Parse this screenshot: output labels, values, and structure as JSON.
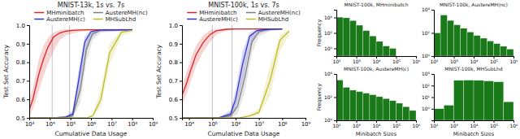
{
  "chart_data": [
    {
      "type": "line",
      "title": "MNIST-13k, 1s vs. 7s",
      "xlabel": "Cumulative Data Usage",
      "ylabel": "Test Set Accuracy",
      "log": "x",
      "legend": "top",
      "xlim": [
        1000,
        1000000000
      ],
      "xticks": [
        {
          "value": 1000,
          "label": "10³"
        },
        {
          "value": 10000,
          "label": "10⁴"
        },
        {
          "value": 100000,
          "label": "10⁵"
        },
        {
          "value": 1000000,
          "label": "10⁶"
        },
        {
          "value": 10000000,
          "label": "10⁷"
        },
        {
          "value": 100000000,
          "label": "10⁸"
        },
        {
          "value": 1000000000,
          "label": "10⁹"
        }
      ],
      "ylim": [
        0.5,
        1.0
      ],
      "yticks": [
        0.5,
        0.6,
        0.7,
        0.8,
        0.9,
        {
          "value": 1.0,
          "label": "1.0"
        }
      ],
      "vlines": {
        "values": [
          13000,
          91000
        ],
        "color": "#b0b0cc"
      },
      "series": [
        {
          "name": "MHminibatch",
          "color": "#d62728",
          "x": [
            1000,
            1500,
            2000,
            3000,
            5000,
            8000,
            15000,
            30000,
            60000,
            130000,
            300000,
            1000000,
            100000000
          ],
          "values": [
            0.545,
            0.6,
            0.66,
            0.74,
            0.82,
            0.88,
            0.935,
            0.958,
            0.968,
            0.972,
            0.974,
            0.975,
            0.975
          ],
          "lower": [
            0.505,
            0.55,
            0.59,
            0.65,
            0.73,
            0.79,
            0.86,
            0.92,
            0.945,
            0.955,
            0.965,
            0.972,
            0.972
          ],
          "upper": [
            0.6,
            0.66,
            0.73,
            0.82,
            0.89,
            0.93,
            0.96,
            0.975,
            0.978,
            0.979,
            0.98,
            0.98,
            0.98
          ]
        },
        {
          "name": "AustereMH(nc)",
          "color": "#7f7f7f",
          "x": [
            1000,
            5000,
            20000,
            60000,
            130000,
            300000,
            600000,
            1200000,
            3000000,
            100000000
          ],
          "values": [
            0.5,
            0.5,
            0.501,
            0.502,
            0.51,
            0.65,
            0.87,
            0.955,
            0.972,
            0.975
          ],
          "lower": [
            0.5,
            0.5,
            0.5,
            0.5,
            0.502,
            0.58,
            0.8,
            0.92,
            0.96,
            0.972
          ],
          "upper": [
            0.5,
            0.5,
            0.503,
            0.506,
            0.53,
            0.72,
            0.92,
            0.972,
            0.978,
            0.979
          ]
        },
        {
          "name": "AustereMH(c)",
          "color": "#3333cc",
          "x": [
            1000,
            5000,
            20000,
            60000,
            130000,
            250000,
            500000,
            1000000,
            2500000,
            100000000
          ],
          "values": [
            0.5,
            0.5,
            0.501,
            0.505,
            0.52,
            0.7,
            0.91,
            0.965,
            0.974,
            0.975
          ],
          "lower": [
            0.5,
            0.5,
            0.5,
            0.502,
            0.51,
            0.62,
            0.84,
            0.935,
            0.965,
            0.972
          ],
          "upper": [
            0.5,
            0.5,
            0.503,
            0.51,
            0.54,
            0.76,
            0.94,
            0.975,
            0.978,
            0.979
          ]
        },
        {
          "name": "MHSubLhd",
          "color": "#bcbd22",
          "x": [
            1000,
            30000,
            130000,
            300000,
            600000,
            1200000,
            3000000,
            8000000,
            30000000,
            100000000
          ],
          "values": [
            0.5,
            0.5,
            0.5,
            0.5,
            0.5,
            0.51,
            0.6,
            0.85,
            0.962,
            0.972
          ],
          "lower": [
            0.5,
            0.5,
            0.5,
            0.5,
            0.5,
            0.505,
            0.56,
            0.79,
            0.94,
            0.965
          ],
          "upper": [
            0.5,
            0.5,
            0.5,
            0.5,
            0.5,
            0.52,
            0.65,
            0.9,
            0.972,
            0.978
          ]
        }
      ]
    },
    {
      "type": "line",
      "title": "MNIST-100k, 1s vs. 7s",
      "xlabel": "Cumulative Data Usage",
      "ylabel": "Test Set Accuracy",
      "log": "x",
      "legend": "top",
      "xlim": [
        5000,
        1000000000
      ],
      "xticks": [
        {
          "value": 10000,
          "label": "10⁴"
        },
        {
          "value": 100000,
          "label": "10⁵"
        },
        {
          "value": 1000000,
          "label": "10⁶"
        },
        {
          "value": 10000000,
          "label": "10⁷"
        },
        {
          "value": 100000000,
          "label": "10⁸"
        },
        {
          "value": 1000000000,
          "label": "10⁹"
        }
      ],
      "ylim": [
        0.5,
        1.0
      ],
      "yticks": [
        0.5,
        0.6,
        0.7,
        0.8,
        0.9,
        {
          "value": 1.0,
          "label": "1.0"
        }
      ],
      "vlines": {
        "values": [
          100000,
          700000
        ],
        "color": "#b0b0cc"
      },
      "series": [
        {
          "name": "MHminibatch",
          "color": "#d62728",
          "x": [
            5000,
            8000,
            12000,
            20000,
            40000,
            80000,
            150000,
            400000,
            1000000,
            100000000
          ],
          "values": [
            0.62,
            0.69,
            0.76,
            0.84,
            0.905,
            0.95,
            0.97,
            0.978,
            0.98,
            0.98
          ],
          "lower": [
            0.57,
            0.63,
            0.7,
            0.78,
            0.855,
            0.91,
            0.95,
            0.97,
            0.976,
            0.977
          ],
          "upper": [
            0.67,
            0.75,
            0.82,
            0.89,
            0.945,
            0.974,
            0.978,
            0.982,
            0.983,
            0.983
          ]
        },
        {
          "name": "AustereMH(nc)",
          "color": "#7f7f7f",
          "x": [
            5000,
            50000,
            200000,
            600000,
            1200000,
            2500000,
            5000000,
            10000000,
            30000000,
            100000000
          ],
          "values": [
            0.5,
            0.5,
            0.502,
            0.51,
            0.56,
            0.72,
            0.91,
            0.965,
            0.976,
            0.98
          ],
          "lower": [
            0.5,
            0.5,
            0.5,
            0.502,
            0.52,
            0.64,
            0.85,
            0.94,
            0.968,
            0.976
          ],
          "upper": [
            0.5,
            0.5,
            0.504,
            0.525,
            0.61,
            0.8,
            0.945,
            0.975,
            0.981,
            0.983
          ]
        },
        {
          "name": "AustereMH(c)",
          "color": "#3333cc",
          "x": [
            5000,
            50000,
            200000,
            600000,
            1000000,
            2000000,
            4000000,
            8000000,
            20000000,
            100000000
          ],
          "values": [
            0.5,
            0.5,
            0.502,
            0.52,
            0.6,
            0.79,
            0.94,
            0.97,
            0.978,
            0.98
          ],
          "lower": [
            0.5,
            0.5,
            0.5,
            0.505,
            0.545,
            0.7,
            0.88,
            0.95,
            0.972,
            0.977
          ],
          "upper": [
            0.5,
            0.5,
            0.504,
            0.54,
            0.65,
            0.86,
            0.96,
            0.978,
            0.982,
            0.983
          ]
        },
        {
          "name": "MHSubLhd",
          "color": "#bcbd22",
          "x": [
            5000,
            200000,
            700000,
            1500000,
            4000000,
            10000000,
            30000000,
            80000000,
            200000000
          ],
          "values": [
            0.5,
            0.5,
            0.5,
            0.5,
            0.51,
            0.53,
            0.7,
            0.92,
            0.968
          ],
          "lower": [
            0.5,
            0.5,
            0.5,
            0.5,
            0.504,
            0.515,
            0.62,
            0.86,
            0.95
          ],
          "upper": [
            0.5,
            0.5,
            0.5,
            0.5,
            0.52,
            0.55,
            0.78,
            0.95,
            0.974
          ]
        }
      ]
    },
    {
      "type": "histogram",
      "title": "MNIST-100k, MHminibatch",
      "ylabel": "Frequency",
      "log": true,
      "color": "#1a7a1a",
      "bins": [
        100,
        213.79620895,
        467.73514129,
        1000,
        2137.9620895,
        4677.3514129,
        10000,
        21379.620895,
        46773.514129,
        100000
      ],
      "values": [
        11000,
        9000,
        4000,
        1000,
        200,
        40,
        8,
        2,
        1
      ],
      "xlim": [
        100,
        1000000
      ],
      "xticks": [
        {
          "value": 100,
          "label": "10²"
        },
        {
          "value": 1000,
          "label": "10³"
        },
        {
          "value": 10000,
          "label": "10⁴"
        },
        {
          "value": 100000,
          "label": "10⁵"
        },
        {
          "value": 1000000,
          "label": "10⁶"
        }
      ],
      "ylim": [
        0.1,
        100000
      ],
      "yticks": [
        {
          "value": 1,
          "label": "10⁰"
        },
        {
          "value": 100,
          "label": "10²"
        },
        {
          "value": 10000,
          "label": "10⁴"
        }
      ]
    },
    {
      "type": "histogram",
      "title": "MNIST-100k, AustereMH(nc)",
      "log": true,
      "color": "#1a7a1a",
      "bins": [
        100,
        213.79620895,
        467.73514129,
        1000,
        2137.9620895,
        4677.3514129,
        10000,
        21379.620895,
        46773.514129,
        100000,
        213796.20895,
        467735.14129,
        1000000
      ],
      "values": [
        100,
        3500,
        1200,
        500,
        250,
        120,
        60,
        35,
        20,
        12,
        7,
        4
      ],
      "xlim": [
        100,
        1000000
      ],
      "xticks": [
        {
          "value": 100,
          "label": "10²"
        },
        {
          "value": 1000,
          "label": "10³"
        },
        {
          "value": 10000,
          "label": "10⁴"
        },
        {
          "value": 100000,
          "label": "10⁵"
        },
        {
          "value": 1000000,
          "label": "10⁶"
        }
      ],
      "ylim": [
        1,
        10000
      ],
      "yticks": [
        {
          "value": 1,
          "label": "10⁰"
        },
        {
          "value": 100,
          "label": "10²"
        },
        {
          "value": 10000,
          "label": "10⁴"
        }
      ]
    },
    {
      "type": "histogram",
      "title": "MNIST-100k, AustereMH(c)",
      "xlabel": "Minibatch Sizes",
      "ylabel": "Frequency",
      "log": true,
      "color": "#1a7a1a",
      "bins": [
        100,
        213.79620895,
        467.73514129,
        1000,
        2137.9620895,
        4677.3514129,
        10000,
        21379.620895,
        46773.514129,
        100000,
        213796.20895,
        467735.14129,
        1000000
      ],
      "values": [
        3000,
        700,
        400,
        300,
        220,
        160,
        110,
        75,
        50,
        30,
        15,
        7
      ],
      "xlim": [
        100,
        1000000
      ],
      "xticks": [
        {
          "value": 100,
          "label": "10²"
        },
        {
          "value": 1000,
          "label": "10³"
        },
        {
          "value": 10000,
          "label": "10⁴"
        },
        {
          "value": 100000,
          "label": "10⁵"
        },
        {
          "value": 1000000,
          "label": "10⁶"
        }
      ],
      "ylim": [
        1,
        10000
      ],
      "yticks": [
        {
          "value": 1,
          "label": "10⁰"
        },
        {
          "value": 100,
          "label": "10²"
        },
        {
          "value": 10000,
          "label": "10⁴"
        }
      ]
    },
    {
      "type": "histogram",
      "title": "MNIST-100k, MHSubLhd",
      "xlabel": "Minibatch Sizes",
      "log": true,
      "color": "#1a7a1a",
      "bins": [
        100,
        316.22776602,
        1000,
        3162.2776602,
        10000,
        31622.776602,
        100000,
        316227.76602,
        1000000
      ],
      "values": [
        1,
        2,
        280,
        290,
        280,
        250,
        210,
        4
      ],
      "xlim": [
        100,
        1000000
      ],
      "xticks": [
        {
          "value": 100,
          "label": "10²"
        },
        {
          "value": 1000,
          "label": "10³"
        },
        {
          "value": 10000,
          "label": "10⁴"
        },
        {
          "value": 100000,
          "label": "10⁵"
        },
        {
          "value": 1000000,
          "label": "10⁶"
        }
      ],
      "ylim": [
        0.1,
        1000
      ],
      "yticks": [
        {
          "value": 1,
          "label": "10⁰"
        },
        {
          "value": 10,
          "label": "10¹"
        },
        {
          "value": 100,
          "label": "10²"
        },
        {
          "value": 1000,
          "label": "10³"
        }
      ]
    }
  ]
}
